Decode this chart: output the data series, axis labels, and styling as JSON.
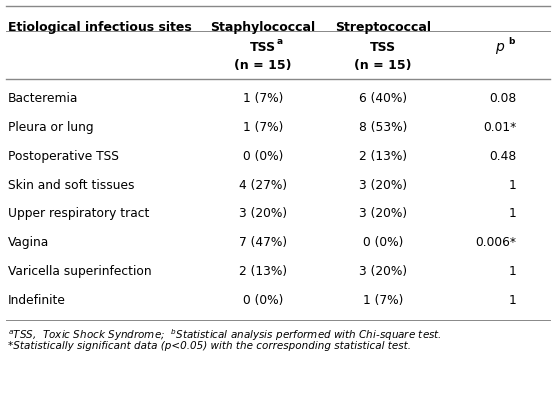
{
  "col1_header": "Etiological infectious sites",
  "col2_header": "Staphylococcal",
  "col3_header": "Streptococcal",
  "rows": [
    [
      "Bacteremia",
      "1 (7%)",
      "6 (40%)",
      "0.08"
    ],
    [
      "Pleura or lung",
      "1 (7%)",
      "8 (53%)",
      "0.01*"
    ],
    [
      "Postoperative TSS",
      "0 (0%)",
      "2 (13%)",
      "0.48"
    ],
    [
      "Skin and soft tissues",
      "4 (27%)",
      "3 (20%)",
      "1"
    ],
    [
      "Upper respiratory tract",
      "3 (20%)",
      "3 (20%)",
      "1"
    ],
    [
      "Vagina",
      "7 (47%)",
      "0 (0%)",
      "0.006*"
    ],
    [
      "Varicella superinfection",
      "2 (13%)",
      "3 (20%)",
      "1"
    ],
    [
      "Indefinite",
      "0 (0%)",
      "1 (7%)",
      "1"
    ]
  ],
  "bg_color": "#ffffff",
  "text_color": "#000000",
  "line_color": "#888888",
  "header_fontsize": 9.0,
  "subheader_fontsize": 9.0,
  "body_fontsize": 8.8,
  "footnote_fontsize": 7.5,
  "fig_width": 5.58,
  "fig_height": 3.95,
  "dpi": 100
}
